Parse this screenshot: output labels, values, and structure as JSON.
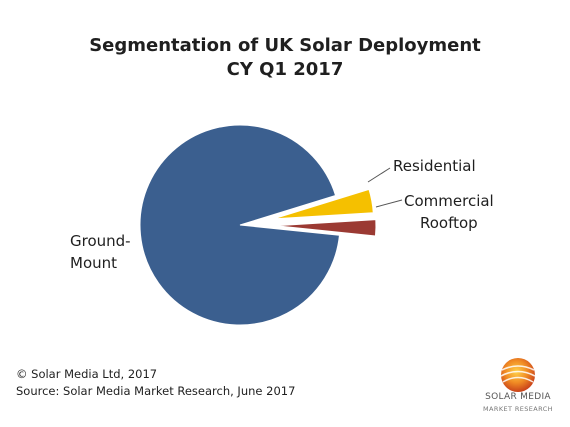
{
  "chart_data": {
    "type": "pie",
    "title_line1": "Segmentation of UK Solar Deployment",
    "title_line2": "CY Q1 2017",
    "slices": [
      {
        "label_lines": [
          "Ground-",
          "Mount"
        ],
        "value": 93.6,
        "color": "#3b5f8f"
      },
      {
        "label_lines": [
          "Residential"
        ],
        "value": 3.8,
        "color": "#f5c000"
      },
      {
        "label_lines": [
          "Commercial",
          "Rooftop"
        ],
        "value": 2.6,
        "color": "#9b3a33"
      }
    ],
    "legend": false
  },
  "footer": {
    "copyright": "© Solar Media Ltd, 2017",
    "source": "Source: Solar Media Market Research, June 2017"
  },
  "logo": {
    "name_line1": "SOLAR MEDIA",
    "name_line2": "MARKET RESEARCH"
  }
}
